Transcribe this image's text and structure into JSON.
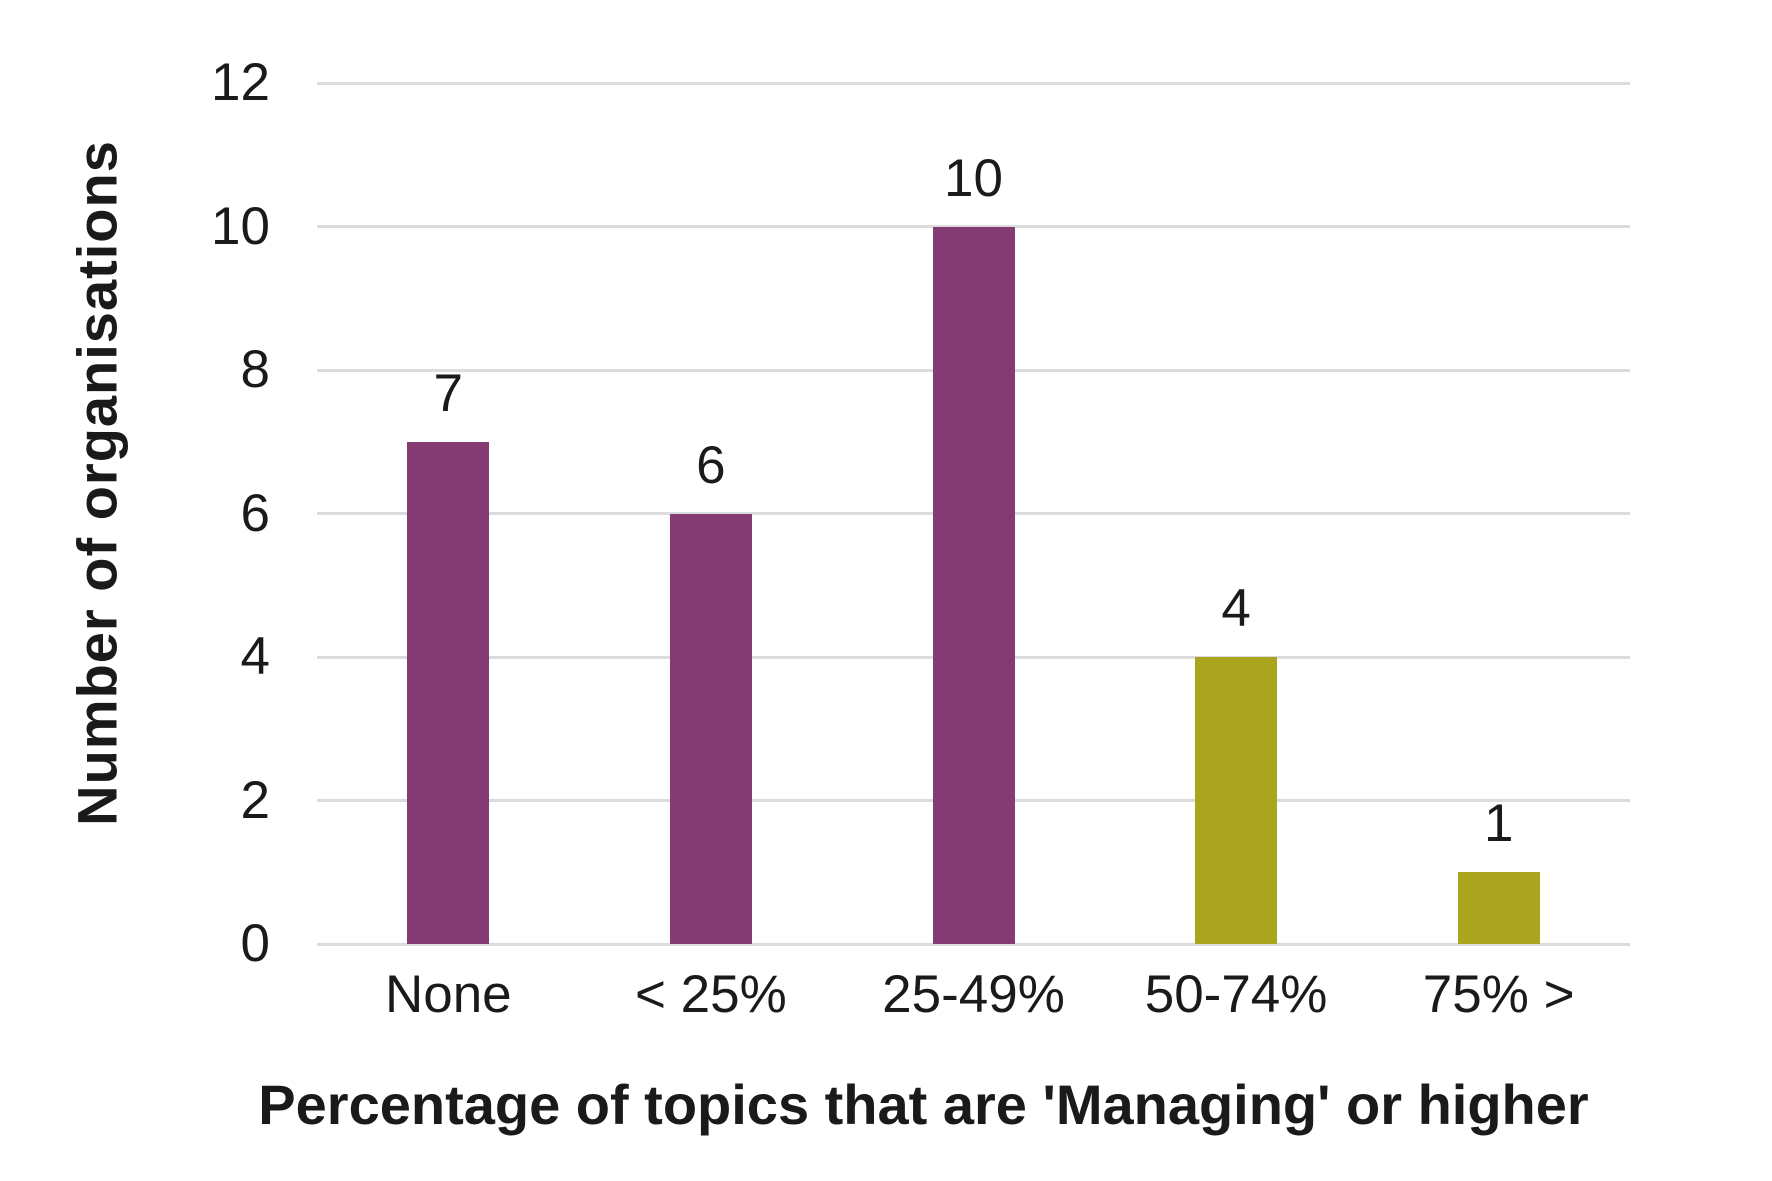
{
  "chart_data": {
    "type": "bar",
    "categories": [
      "None",
      "< 25%",
      "25-49%",
      "50-74%",
      "75% >"
    ],
    "values": [
      7,
      6,
      10,
      4,
      1
    ],
    "value_labels": [
      "7",
      "6",
      "10",
      "4",
      "1"
    ],
    "bar_colors": [
      "#843B74",
      "#843B74",
      "#843B74",
      "#A9A51E",
      "#A9A51E"
    ],
    "title": "",
    "xlabel": "Percentage of topics that are 'Managing' or higher",
    "ylabel": "Number of organisations",
    "ylim": [
      0,
      12
    ],
    "yticks": [
      0,
      2,
      4,
      6,
      8,
      10,
      12
    ],
    "grid": "horizontal",
    "legend": "none",
    "colors": {
      "bar_purple": "#843B74",
      "bar_olive": "#A9A51E",
      "gridline": "#DCDCDC",
      "text": "#1A1A1A",
      "background": "#FFFFFF"
    }
  }
}
